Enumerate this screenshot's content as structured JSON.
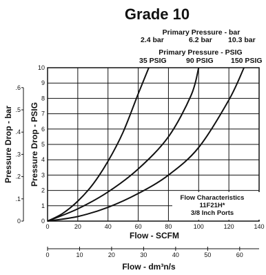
{
  "chart_data": {
    "type": "line",
    "title": "Grade 10",
    "primary_pressure_bar": {
      "label": "Primary Pressure - bar",
      "values": [
        "2.4 bar",
        "6.2 bar",
        "10.3 bar"
      ]
    },
    "primary_pressure_psig": {
      "label": "Primary Pressure - PSIG",
      "values": [
        "35 PSIG",
        "90 PSIG",
        "150 PSIG"
      ]
    },
    "xlabel": "Flow - SCFM",
    "x_ticks": [
      0,
      20,
      40,
      60,
      80,
      100,
      120,
      140
    ],
    "xlim": [
      0,
      140
    ],
    "ylabel": "Pressure Drop - PSIG",
    "y_ticks": [
      0,
      1,
      2,
      3,
      4,
      5,
      6,
      7,
      8,
      9,
      10
    ],
    "ylim": [
      0,
      10
    ],
    "ylabel2": "Pressure Drop - bar",
    "y2_ticks": [
      "0",
      ".1",
      ".2",
      ".3",
      ".4",
      ".5",
      ".6"
    ],
    "xlabel2": "Flow - dm³n/s",
    "x2_ticks": [
      0,
      10,
      20,
      30,
      40,
      50,
      60
    ],
    "grid": true,
    "annotation": [
      "Flow Characteristics",
      "11F21H*",
      "3/8 Inch Ports"
    ],
    "series": [
      {
        "x": [
          0,
          10,
          20,
          30,
          40,
          50,
          60,
          67
        ],
        "y": [
          0,
          0.5,
          1.3,
          2.4,
          3.9,
          5.8,
          8.3,
          10
        ]
      },
      {
        "x": [
          0,
          20,
          40,
          60,
          80,
          95,
          100
        ],
        "y": [
          0,
          0.8,
          1.9,
          3.4,
          5.5,
          8.2,
          10
        ]
      },
      {
        "x": [
          0,
          20,
          40,
          60,
          80,
          100,
          120,
          130
        ],
        "y": [
          0,
          0.3,
          0.9,
          1.8,
          3.0,
          4.8,
          7.9,
          10
        ]
      }
    ],
    "colors": {
      "line": "#111111",
      "grid": "#111111"
    }
  }
}
